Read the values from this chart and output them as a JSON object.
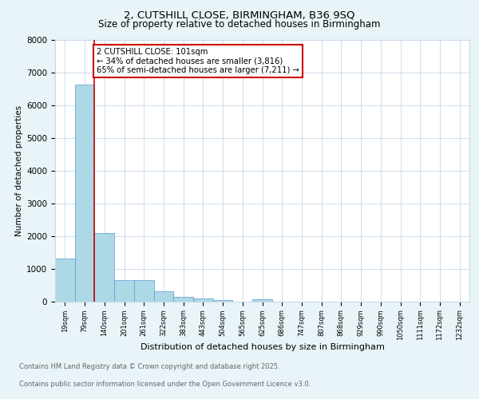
{
  "title_line1": "2, CUTSHILL CLOSE, BIRMINGHAM, B36 9SQ",
  "title_line2": "Size of property relative to detached houses in Birmingham",
  "xlabel": "Distribution of detached houses by size in Birmingham",
  "ylabel": "Number of detached properties",
  "categories": [
    "19sqm",
    "79sqm",
    "140sqm",
    "201sqm",
    "261sqm",
    "322sqm",
    "383sqm",
    "443sqm",
    "504sqm",
    "565sqm",
    "625sqm",
    "686sqm",
    "747sqm",
    "807sqm",
    "868sqm",
    "929sqm",
    "990sqm",
    "1050sqm",
    "1111sqm",
    "1172sqm",
    "1232sqm"
  ],
  "values": [
    1310,
    6620,
    2090,
    650,
    640,
    300,
    140,
    85,
    35,
    0,
    50,
    0,
    0,
    0,
    0,
    0,
    0,
    0,
    0,
    0,
    0
  ],
  "bar_color": "#add8e6",
  "bar_edge_color": "#5b9bd5",
  "property_line_color": "#cc0000",
  "property_line_x": 1.5,
  "annotation_text": "2 CUTSHILL CLOSE: 101sqm\n← 34% of detached houses are smaller (3,816)\n65% of semi-detached houses are larger (7,211) →",
  "annotation_box_color": "white",
  "annotation_box_edge_color": "#cc0000",
  "ylim": [
    0,
    8000
  ],
  "yticks": [
    0,
    1000,
    2000,
    3000,
    4000,
    5000,
    6000,
    7000,
    8000
  ],
  "footer_line1": "Contains HM Land Registry data © Crown copyright and database right 2025.",
  "footer_line2": "Contains public sector information licensed under the Open Government Licence v3.0.",
  "bg_color": "#e8f4f8",
  "plot_bg_color": "#ffffff",
  "grid_color": "#c8d8e8"
}
